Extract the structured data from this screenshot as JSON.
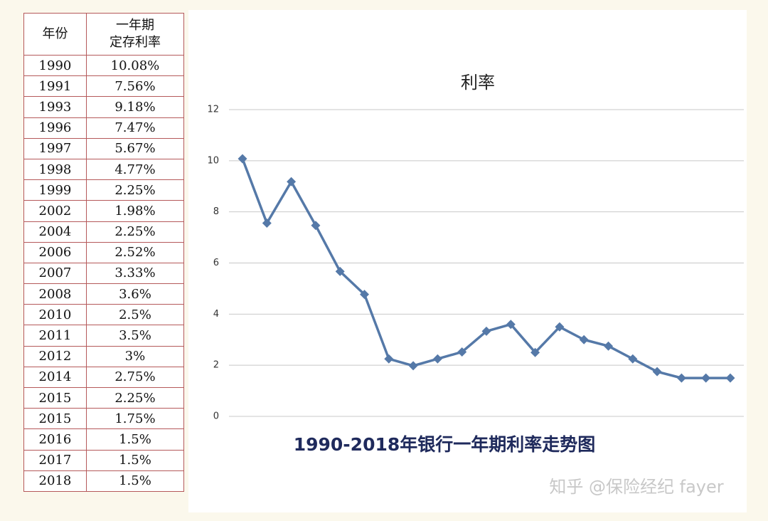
{
  "table": {
    "columns": [
      [
        "年份"
      ],
      [
        "一年期",
        "定存利率"
      ]
    ],
    "rows": [
      [
        "1990",
        "10.08%"
      ],
      [
        "1991",
        "7.56%"
      ],
      [
        "1993",
        "9.18%"
      ],
      [
        "1996",
        "7.47%"
      ],
      [
        "1997",
        "5.67%"
      ],
      [
        "1998",
        "4.77%"
      ],
      [
        "1999",
        "2.25%"
      ],
      [
        "2002",
        "1.98%"
      ],
      [
        "2004",
        "2.25%"
      ],
      [
        "2006",
        "2.52%"
      ],
      [
        "2007",
        "3.33%"
      ],
      [
        "2008",
        "3.6%"
      ],
      [
        "2010",
        "2.5%"
      ],
      [
        "2011",
        "3.5%"
      ],
      [
        "2012",
        "3%"
      ],
      [
        "2014",
        "2.75%"
      ],
      [
        "2015",
        "2.25%"
      ],
      [
        "2015",
        "1.75%"
      ],
      [
        "2016",
        "1.5%"
      ],
      [
        "2017",
        "1.5%"
      ],
      [
        "2018",
        "1.5%"
      ]
    ]
  },
  "chart_data": {
    "type": "line",
    "title": "利率",
    "caption": "1990-2018年银行一年期利率走势图",
    "values": [
      10.08,
      7.56,
      9.18,
      7.47,
      5.67,
      4.77,
      2.25,
      1.98,
      2.25,
      2.52,
      3.33,
      3.6,
      2.5,
      3.5,
      3,
      2.75,
      2.25,
      1.75,
      1.5,
      1.5,
      1.5
    ],
    "color": "#5579a8",
    "ylim": [
      0,
      12
    ],
    "yticks": [
      0,
      2,
      4,
      6,
      8,
      10,
      12
    ],
    "grid": true
  },
  "watermark": "知乎 @保险经纪 fayer"
}
